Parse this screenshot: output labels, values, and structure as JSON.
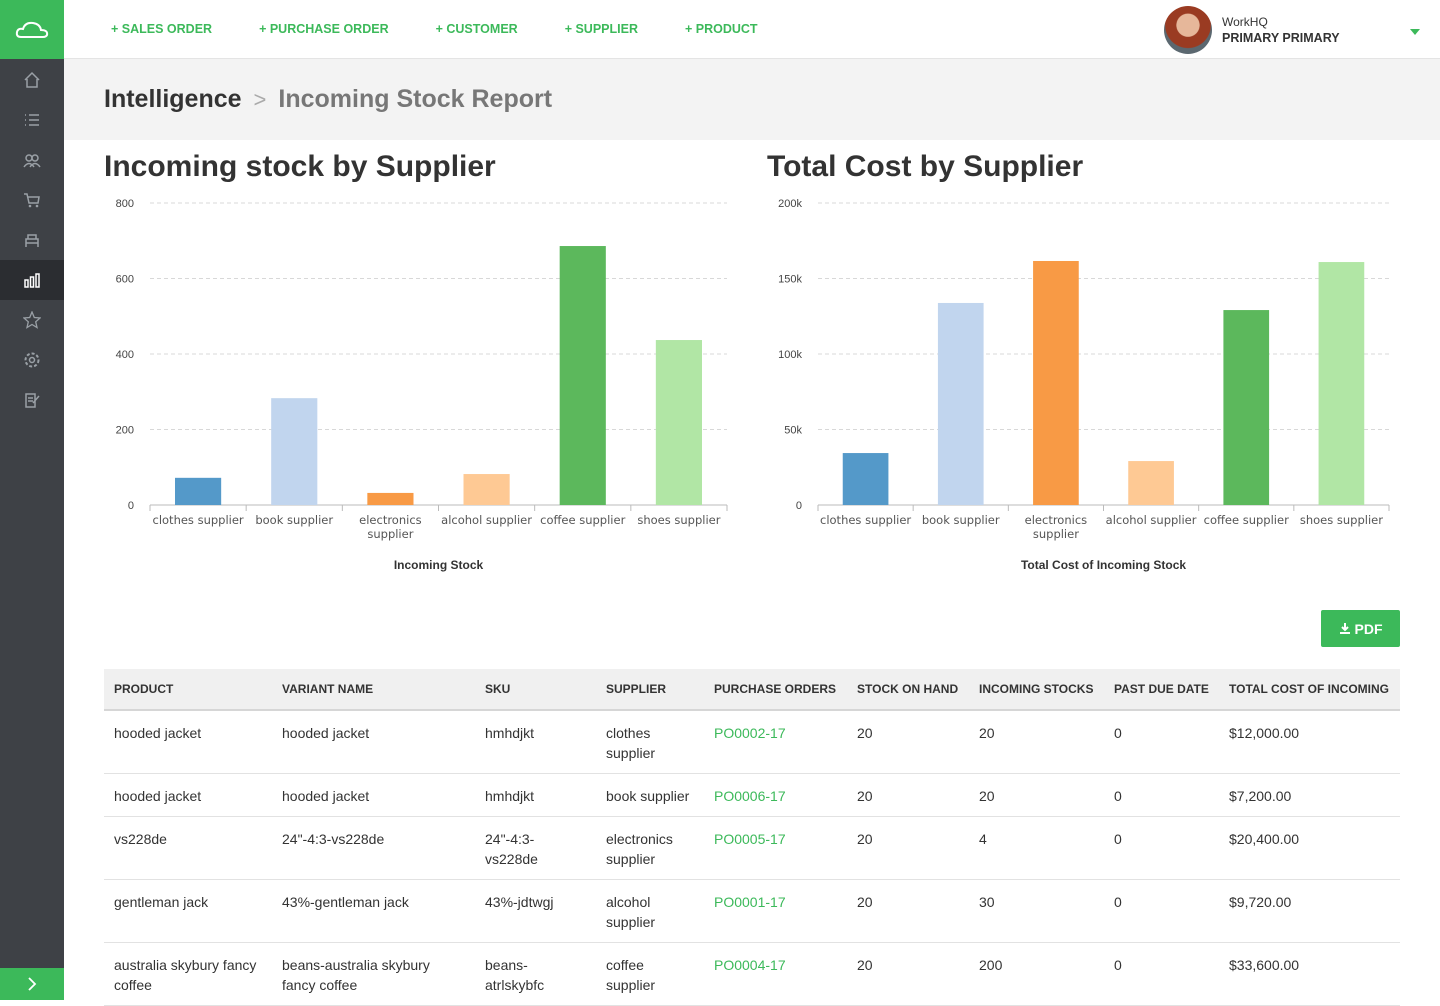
{
  "nav": {
    "actions": [
      "+ SALES ORDER",
      "+ PURCHASE ORDER",
      "+ CUSTOMER",
      "+ SUPPLIER",
      "+ PRODUCT"
    ],
    "user": {
      "org": "WorkHQ",
      "name": "PRIMARY PRIMARY"
    }
  },
  "breadcrumb": [
    "Intelligence",
    "Incoming Stock Report"
  ],
  "chart_data": [
    {
      "type": "bar",
      "title": "Incoming stock by Supplier",
      "x_label": "Incoming Stock",
      "categories": [
        "clothes supplier",
        "book supplier",
        "electronics supplier",
        "alcohol supplier",
        "coffee supplier",
        "shoes supplier"
      ],
      "values": [
        72,
        283,
        32,
        82,
        686,
        437
      ],
      "colors": [
        "#5499c9",
        "#c1d5ee",
        "#f89a45",
        "#fec994",
        "#5cb85c",
        "#b1e6a5"
      ],
      "ylim": [
        0,
        800
      ],
      "yticks": [
        0,
        200,
        400,
        600,
        800
      ],
      "grid": true
    },
    {
      "type": "bar",
      "title": "Total Cost by Supplier",
      "x_label": "Total Cost of Incoming Stock",
      "categories": [
        "clothes supplier",
        "book supplier",
        "electronics supplier",
        "alcohol supplier",
        "coffee supplier",
        "shoes supplier"
      ],
      "values": [
        34400,
        133800,
        161600,
        29100,
        129100,
        160900
      ],
      "colors": [
        "#5499c9",
        "#c1d5ee",
        "#f89a45",
        "#fec994",
        "#5cb85c",
        "#b1e6a5"
      ],
      "ylim": [
        0,
        200000
      ],
      "yticks": [
        0,
        {
          "value": 50000,
          "label": "50k"
        },
        {
          "value": 100000,
          "label": "100k"
        },
        {
          "value": 150000,
          "label": "150k"
        },
        {
          "value": 200000,
          "label": "200k"
        }
      ],
      "grid": true
    }
  ],
  "pdf_button": "PDF",
  "table": {
    "headers": [
      "PRODUCT",
      "VARIANT NAME",
      "SKU",
      "SUPPLIER",
      "PURCHASE ORDERS",
      "STOCK ON HAND",
      "INCOMING STOCKS",
      "PAST DUE DATE",
      "TOTAL COST OF INCOMING"
    ],
    "rows": [
      [
        "hooded jacket",
        "hooded jacket",
        "hmhdjkt",
        "clothes supplier",
        "PO0002-17",
        "20",
        "20",
        "0",
        "$12,000.00"
      ],
      [
        "hooded jacket",
        "hooded jacket",
        "hmhdjkt",
        "book supplier",
        "PO0006-17",
        "20",
        "20",
        "0",
        "$7,200.00"
      ],
      [
        "vs228de",
        "24\"-4:3-vs228de",
        "24\"-4:3-vs228de",
        "electronics supplier",
        "PO0005-17",
        "20",
        "4",
        "0",
        "$20,400.00"
      ],
      [
        "gentleman jack",
        "43%-gentleman jack",
        "43%-jdtwgj",
        "alcohol supplier",
        "PO0001-17",
        "20",
        "30",
        "0",
        "$9,720.00"
      ],
      [
        "australia skybury fancy coffee",
        "beans-australia skybury fancy coffee",
        "beans-atrlskybfc",
        "coffee supplier",
        "PO0004-17",
        "20",
        "200",
        "0",
        "$33,600.00"
      ]
    ]
  }
}
